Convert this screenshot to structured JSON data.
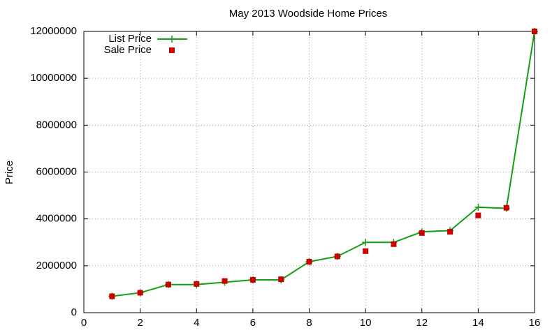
{
  "chart_data": {
    "type": "line",
    "title": "May 2013 Woodside Home Prices",
    "y_label": "Price",
    "x": [
      1,
      2,
      3,
      4,
      5,
      6,
      7,
      8,
      9,
      10,
      11,
      12,
      13,
      14,
      15,
      16
    ],
    "series": [
      {
        "name": "List Price",
        "color": "#11a011",
        "style": "linespoints",
        "values": [
          700000,
          850000,
          1200000,
          1200000,
          1300000,
          1400000,
          1400000,
          2175000,
          2400000,
          3000000,
          3000000,
          3450000,
          3500000,
          4500000,
          4450000,
          12000000
        ]
      },
      {
        "name": "Sale Price",
        "color": "#cc0000",
        "style": "points",
        "values": [
          700000,
          850000,
          1200000,
          1225000,
          1350000,
          1400000,
          1425000,
          2175000,
          2400000,
          2625000,
          2925000,
          3400000,
          3450000,
          4150000,
          4475000,
          12000000
        ]
      }
    ],
    "xlim": [
      0,
      16
    ],
    "xticks": [
      0,
      2,
      4,
      6,
      8,
      10,
      12,
      14,
      16
    ],
    "ylim": [
      0,
      12000000
    ],
    "yticks": [
      0,
      2000000,
      4000000,
      6000000,
      8000000,
      10000000,
      12000000
    ],
    "grid": true,
    "legend": "top-left"
  }
}
